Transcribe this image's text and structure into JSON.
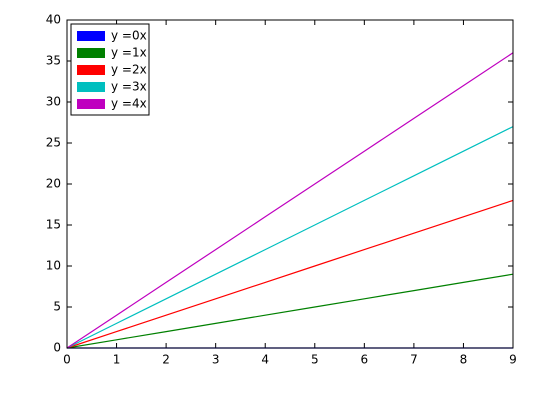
{
  "chart_data": {
    "type": "line",
    "x": [
      0,
      1,
      2,
      3,
      4,
      5,
      6,
      7,
      8,
      9
    ],
    "series": [
      {
        "name": "y =0x",
        "color": "#0000ff",
        "values": [
          0,
          0,
          0,
          0,
          0,
          0,
          0,
          0,
          0,
          0
        ]
      },
      {
        "name": "y =1x",
        "color": "#008000",
        "values": [
          0,
          1,
          2,
          3,
          4,
          5,
          6,
          7,
          8,
          9
        ]
      },
      {
        "name": "y =2x",
        "color": "#ff0000",
        "values": [
          0,
          2,
          4,
          6,
          8,
          10,
          12,
          14,
          16,
          18
        ]
      },
      {
        "name": "y =3x",
        "color": "#00bfbf",
        "values": [
          0,
          3,
          6,
          9,
          12,
          15,
          18,
          21,
          24,
          27
        ]
      },
      {
        "name": "y =4x",
        "color": "#bf00bf",
        "values": [
          0,
          4,
          8,
          12,
          16,
          20,
          24,
          28,
          32,
          36
        ]
      }
    ],
    "xlim": [
      0,
      9
    ],
    "xticks": [
      0,
      1,
      2,
      3,
      4,
      5,
      6,
      7,
      8,
      9
    ],
    "ylim": [
      0,
      40
    ],
    "yticks": [
      0,
      5,
      10,
      15,
      20,
      25,
      30,
      35,
      40
    ],
    "grid": false,
    "legend": "upper-left"
  }
}
